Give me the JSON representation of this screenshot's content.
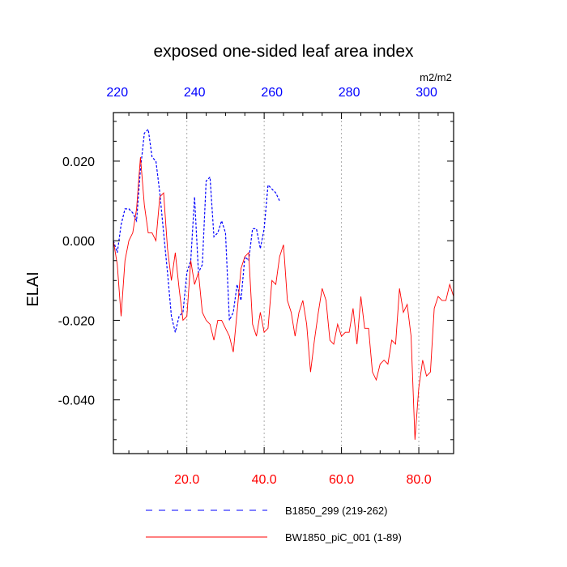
{
  "chart_data": {
    "type": "line",
    "title": "exposed one-sided leaf area index",
    "ylabel": "ELAI",
    "units": "m2/m2",
    "bottom_axis": {
      "range": [
        1,
        89
      ],
      "ticks": [
        20,
        40,
        60,
        80
      ],
      "tick_labels": [
        "20.0",
        "40.0",
        "60.0",
        "80.0"
      ],
      "color": "#ff0000"
    },
    "top_axis": {
      "range": [
        219,
        307
      ],
      "ticks": [
        220,
        240,
        260,
        280,
        300
      ],
      "tick_labels": [
        "220",
        "240",
        "260",
        "280",
        "300"
      ],
      "color": "#0000ff"
    },
    "y_axis": {
      "range": [
        -0.0535,
        0.0322
      ],
      "ticks": [
        0.02,
        0.0,
        -0.02,
        -0.04
      ],
      "tick_labels": [
        "0.020",
        "0.000",
        "-0.020",
        "-0.040"
      ]
    },
    "grid": "vertical dotted at bottom-axis ticks",
    "series": [
      {
        "name": "B1850_299 (219-262)",
        "style": "dashed",
        "color": "#0000ff",
        "x": [
          219,
          220,
          221,
          222,
          223,
          224,
          225,
          226,
          227,
          228,
          229,
          230,
          231,
          232,
          233,
          234,
          235,
          236,
          237,
          238,
          239,
          240,
          241,
          242,
          243,
          244,
          245,
          246,
          247,
          248,
          249,
          250,
          251,
          252,
          253,
          254,
          255,
          256,
          257,
          258,
          259,
          260,
          261,
          262
        ],
        "y": [
          0.0,
          -0.003,
          0.004,
          0.008,
          0.008,
          0.007,
          0.005,
          0.018,
          0.027,
          0.028,
          0.021,
          0.02,
          0.012,
          0.002,
          -0.008,
          -0.019,
          -0.023,
          -0.019,
          -0.018,
          -0.008,
          -0.005,
          0.011,
          -0.008,
          -0.006,
          0.015,
          0.016,
          0.001,
          0.002,
          0.005,
          0.002,
          -0.02,
          -0.018,
          -0.011,
          -0.015,
          -0.004,
          -0.005,
          0.003,
          0.003,
          -0.002,
          0.003,
          0.014,
          0.013,
          0.012,
          0.01
        ]
      },
      {
        "name": "BW1850_piC_001 (1-89)",
        "style": "solid",
        "color": "#ff0000",
        "x": [
          1,
          2,
          3,
          4,
          5,
          6,
          7,
          8,
          9,
          10,
          11,
          12,
          13,
          14,
          15,
          16,
          17,
          18,
          19,
          20,
          21,
          22,
          23,
          24,
          25,
          26,
          27,
          28,
          29,
          30,
          31,
          32,
          33,
          34,
          35,
          36,
          37,
          38,
          39,
          40,
          41,
          42,
          43,
          44,
          45,
          46,
          47,
          48,
          49,
          50,
          51,
          52,
          53,
          54,
          55,
          56,
          57,
          58,
          59,
          60,
          61,
          62,
          63,
          64,
          65,
          66,
          67,
          68,
          69,
          70,
          71,
          72,
          73,
          74,
          75,
          76,
          77,
          78,
          79,
          80,
          81,
          82,
          83,
          84,
          85,
          86,
          87,
          88,
          89
        ],
        "y": [
          0.0,
          -0.006,
          -0.019,
          -0.005,
          0.0,
          0.002,
          0.008,
          0.021,
          0.009,
          0.002,
          0.002,
          0.0,
          0.011,
          0.012,
          -0.002,
          -0.01,
          -0.003,
          -0.012,
          -0.02,
          -0.019,
          -0.005,
          -0.011,
          -0.008,
          -0.018,
          -0.02,
          -0.021,
          -0.025,
          -0.02,
          -0.02,
          -0.022,
          -0.024,
          -0.028,
          -0.018,
          -0.007,
          -0.004,
          -0.003,
          -0.021,
          -0.024,
          -0.018,
          -0.023,
          -0.022,
          -0.01,
          -0.011,
          -0.004,
          -0.001,
          -0.015,
          -0.018,
          -0.024,
          -0.018,
          -0.015,
          -0.021,
          -0.033,
          -0.025,
          -0.018,
          -0.012,
          -0.015,
          -0.025,
          -0.026,
          -0.021,
          -0.024,
          -0.023,
          -0.023,
          -0.017,
          -0.026,
          -0.014,
          -0.022,
          -0.022,
          -0.033,
          -0.035,
          -0.031,
          -0.03,
          -0.031,
          -0.025,
          -0.026,
          -0.012,
          -0.018,
          -0.016,
          -0.024,
          -0.05,
          -0.037,
          -0.03,
          -0.034,
          -0.033,
          -0.017,
          -0.014,
          -0.015,
          -0.015,
          -0.011,
          -0.014
        ]
      }
    ],
    "legend": "bottom"
  }
}
